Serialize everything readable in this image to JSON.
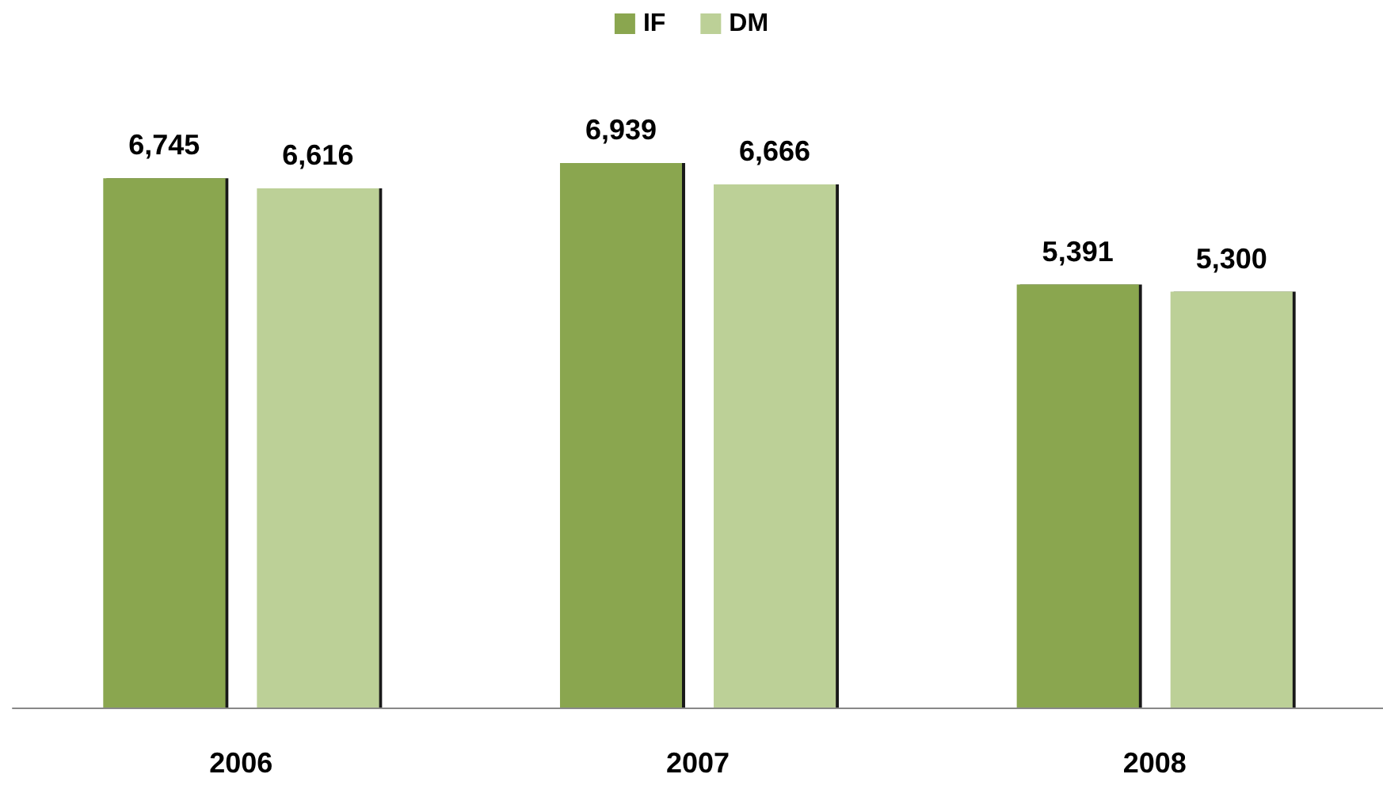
{
  "chart_data": {
    "type": "bar",
    "categories": [
      "2006",
      "2007",
      "2008"
    ],
    "series": [
      {
        "name": "IF",
        "color": "#8aa64f",
        "values": [
          6745,
          6939,
          5391
        ],
        "value_labels": [
          "6,745",
          "6,939",
          "5,391"
        ]
      },
      {
        "name": "DM",
        "color": "#bcd097",
        "values": [
          6616,
          6666,
          5300
        ],
        "value_labels": [
          "6,616",
          "6,666",
          "5,300"
        ]
      }
    ],
    "legend": "top",
    "grid": false
  }
}
